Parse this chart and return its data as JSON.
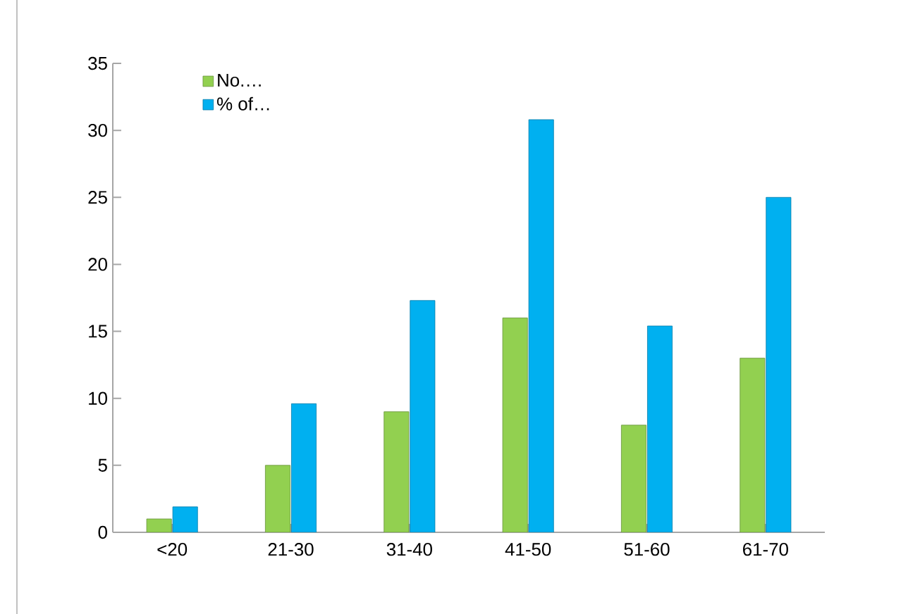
{
  "chart_data": {
    "type": "bar",
    "categories": [
      "<20",
      "21-30",
      "31-40",
      "41-50",
      "51-60",
      "61-70"
    ],
    "series": [
      {
        "name": "No.…",
        "color": "#92d050",
        "values": [
          1,
          5,
          9,
          16,
          8,
          13
        ]
      },
      {
        "name": "% of…",
        "color": "#00b0f0",
        "values": [
          1.9,
          9.6,
          17.3,
          30.8,
          15.4,
          25
        ]
      }
    ],
    "ylim": [
      0,
      35
    ],
    "yticks": [
      0,
      5,
      10,
      15,
      20,
      25,
      30,
      35
    ],
    "grid": false,
    "legend": "top left"
  }
}
